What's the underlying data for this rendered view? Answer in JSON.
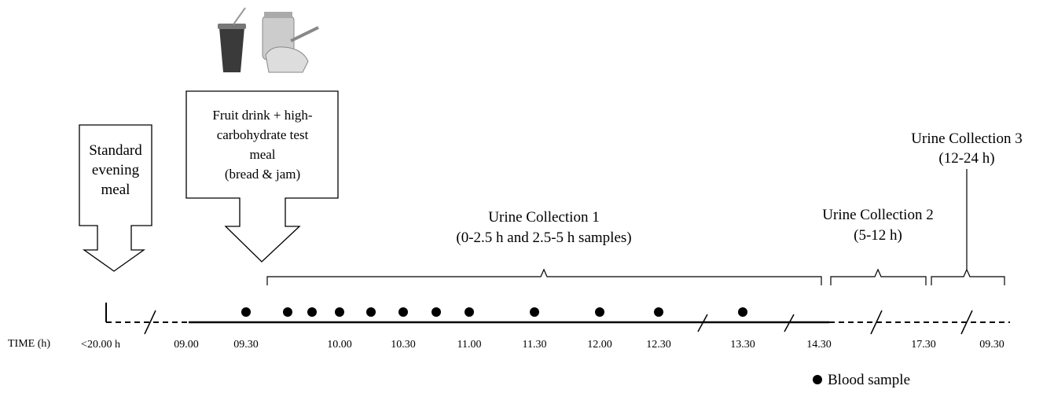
{
  "meals": [
    {
      "lines": [
        "Standard",
        "evening",
        "meal"
      ]
    },
    {
      "lines": [
        "Fruit drink + high-",
        "carbohydrate test",
        "meal",
        "(bread & jam)"
      ]
    }
  ],
  "collections": [
    {
      "title": "Urine Collection 1",
      "detail": "(0-2.5 h and 2.5-5 h samples)"
    },
    {
      "title": "Urine Collection 2",
      "detail": "(5-12 h)"
    },
    {
      "title": "Urine Collection 3",
      "detail": "(12-24 h)"
    }
  ],
  "time_axis": {
    "label": "TIME (h)",
    "ticks": [
      "<20.00 h",
      "09.00",
      "09.30",
      "10.00",
      "10.30",
      "11.00",
      "11.30",
      "12.00",
      "12.30",
      "13.30",
      "14.30",
      "17.30",
      "09.30"
    ]
  },
  "legend": {
    "label": "Blood sample"
  }
}
